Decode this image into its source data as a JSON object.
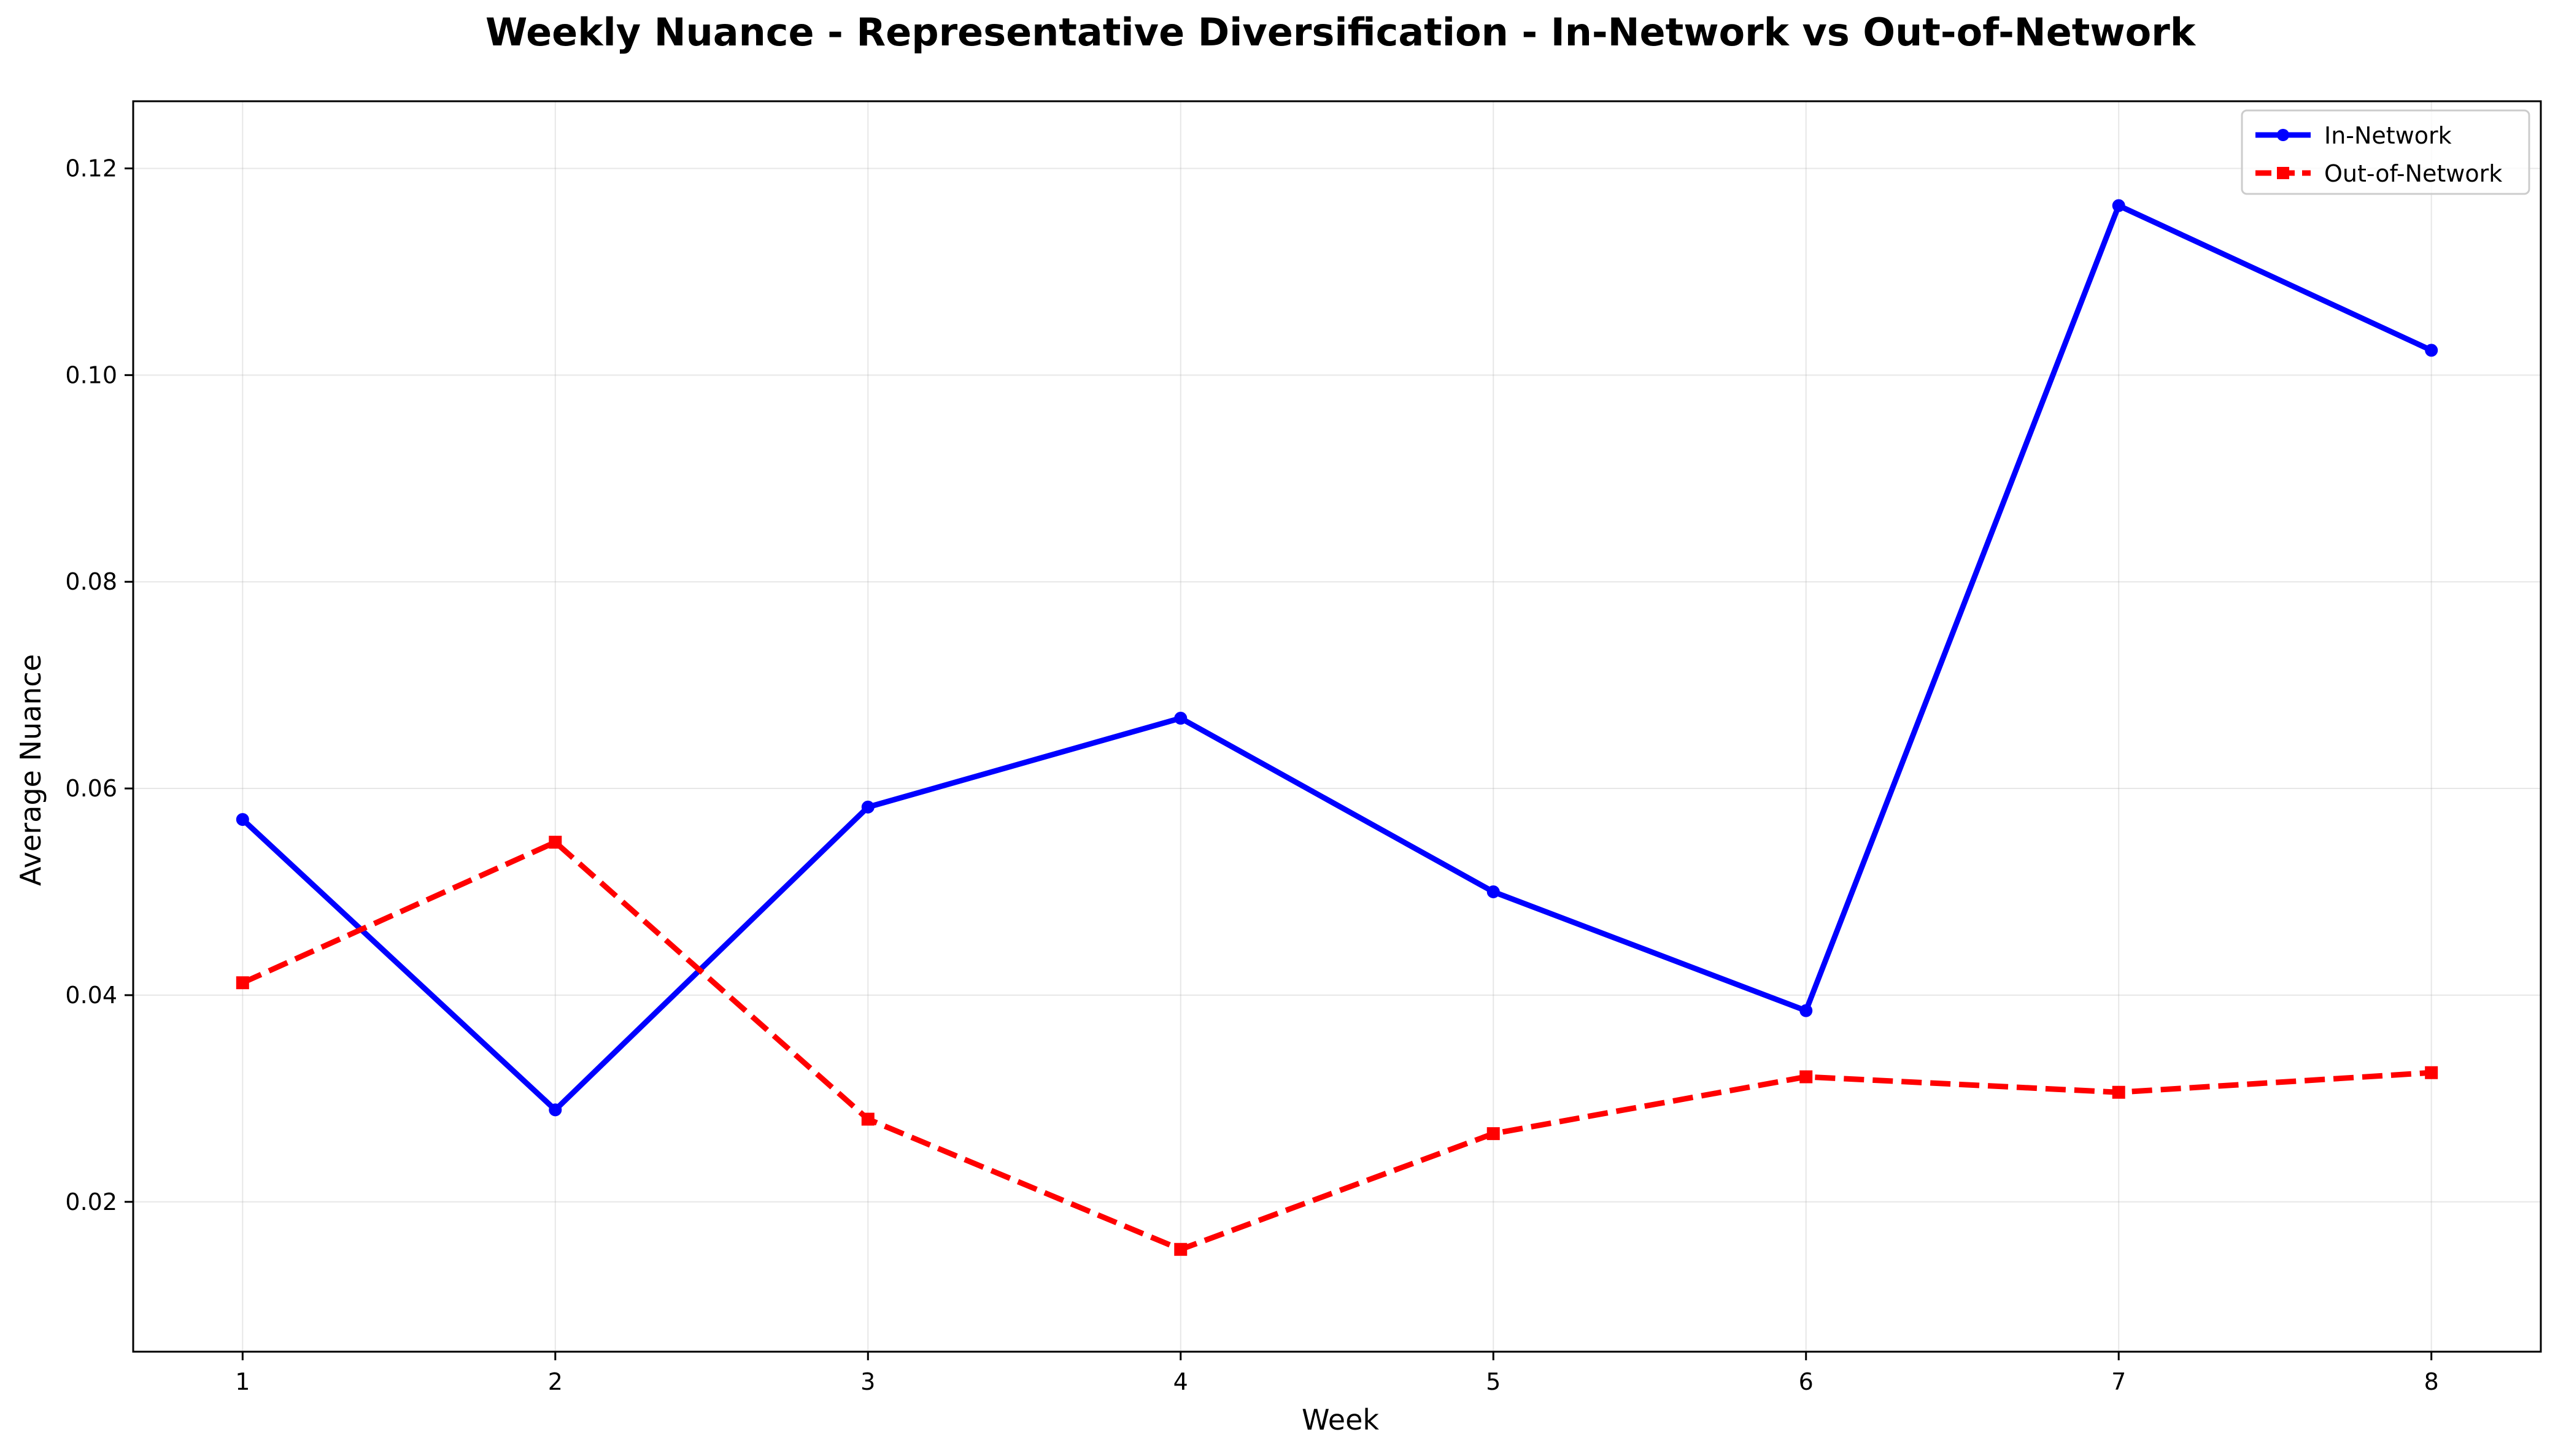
{
  "chart_data": {
    "type": "line",
    "title": "Weekly Nuance - Representative Diversification - In-Network vs Out-of-Network",
    "xlabel": "Week",
    "ylabel": "Average Nuance",
    "x": [
      1,
      2,
      3,
      4,
      5,
      6,
      7,
      8
    ],
    "x_tick_labels": [
      "1",
      "2",
      "3",
      "4",
      "5",
      "6",
      "7",
      "8"
    ],
    "xlim": [
      0.65,
      8.35
    ],
    "ylim": [
      0.0055,
      0.1265
    ],
    "y_ticks": [
      0.02,
      0.04,
      0.06,
      0.08,
      0.1,
      0.12
    ],
    "y_tick_labels": [
      "0.02",
      "0.04",
      "0.06",
      "0.08",
      "0.10",
      "0.12"
    ],
    "grid": true,
    "legend_position": "top-right",
    "series": [
      {
        "name": "In-Network",
        "color": "#0000ff",
        "line_style": "solid",
        "marker": "circle",
        "values": [
          0.057,
          0.0289,
          0.0582,
          0.0668,
          0.05,
          0.0385,
          0.1164,
          0.1024
        ]
      },
      {
        "name": "Out-of-Network",
        "color": "#ff0000",
        "line_style": "dashed",
        "marker": "square",
        "values": [
          0.0412,
          0.0548,
          0.028,
          0.0154,
          0.0266,
          0.0321,
          0.0306,
          0.0325
        ]
      }
    ]
  }
}
